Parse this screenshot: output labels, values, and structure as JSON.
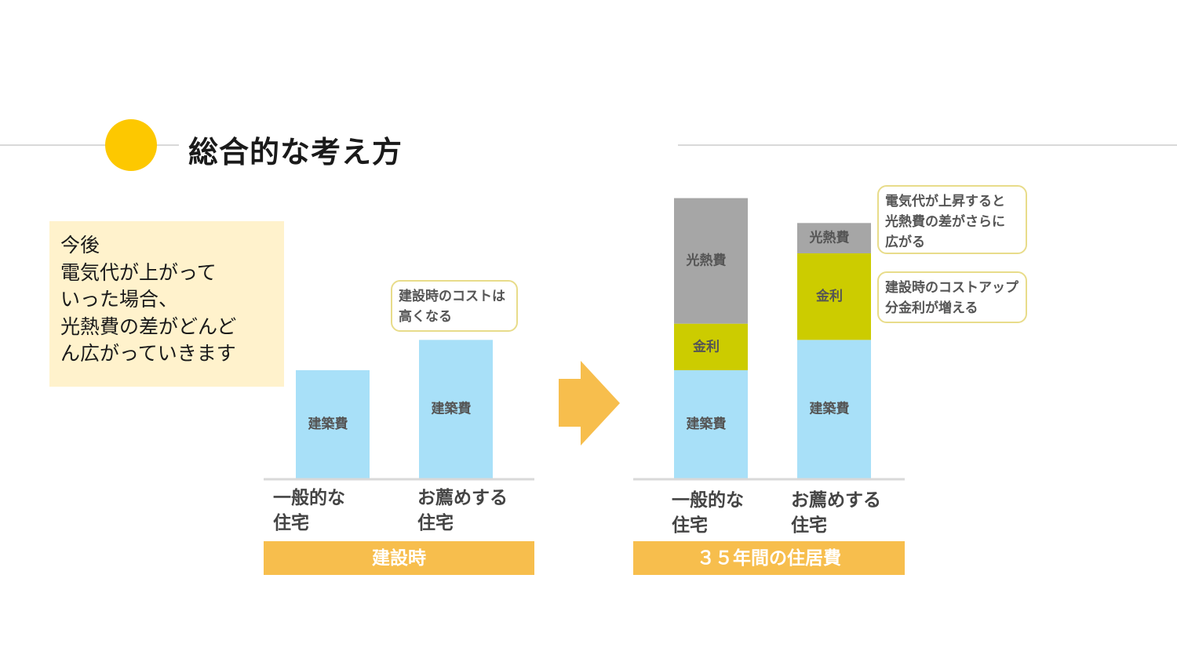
{
  "slide": {
    "title": "総合的な考え方",
    "note": "今後\n電気代が上がって\nいった場合、\n光熱費の差がどんど\nん広がっていきます",
    "accent_color": "#fdc800"
  },
  "colors": {
    "construction": "#a8e0f8",
    "interest": "#cccc00",
    "utilities": "#a6a6a6",
    "period_bar": "#f7be4d",
    "arrow": "#f7be4d"
  },
  "chart_data": [
    {
      "type": "bar",
      "period_label": "建設時",
      "categories": [
        "一般的な\n住宅",
        "お薦めする\n住宅"
      ],
      "series": [
        {
          "name": "建築費",
          "values": [
            100,
            128
          ]
        }
      ],
      "callouts": [
        {
          "text": "建設時のコストは\n高くなる"
        }
      ]
    },
    {
      "type": "bar",
      "stacked": true,
      "period_label": "３５年間の住居費",
      "categories": [
        "一般的な\n住宅",
        "お薦めする\n住宅"
      ],
      "series": [
        {
          "name": "建築費",
          "values": [
            100,
            128
          ]
        },
        {
          "name": "金利",
          "values": [
            43,
            80
          ]
        },
        {
          "name": "光熱費",
          "values": [
            116,
            28
          ]
        }
      ],
      "callouts": [
        {
          "text": "電気代が上昇すると\n光熱費の差がさらに\n広がる"
        },
        {
          "text": "建設時のコストアップ\n分金利が増える"
        }
      ]
    }
  ]
}
